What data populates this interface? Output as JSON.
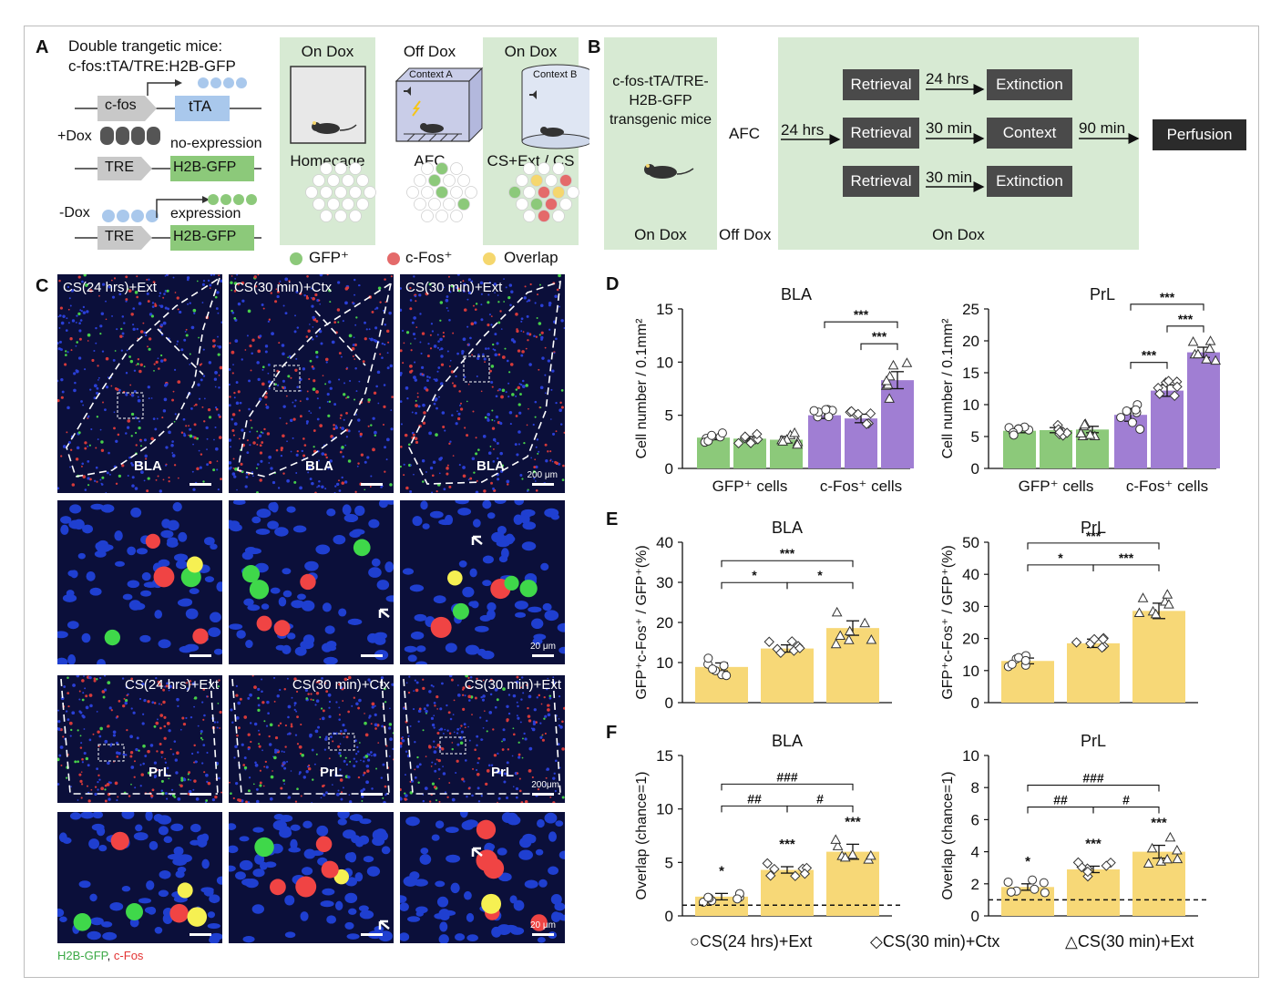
{
  "panel_labels": {
    "a": "A",
    "b": "B",
    "c": "C",
    "d": "D",
    "e": "E",
    "f": "F"
  },
  "panelA": {
    "title_line1": "Double trangetic mice:",
    "title_line2": "c-fos:tTA/TRE:H2B-GFP",
    "cfos_label": "c-fos",
    "tta_label": "tTA",
    "plus_dox": "+Dox",
    "no_expression": "no-expression",
    "tre1": "TRE",
    "h2b1": "H2B-GFP",
    "minus_dox": "-Dox",
    "expression": "expression",
    "tre2": "TRE",
    "h2b2": "H2B-GFP",
    "stages": [
      {
        "top": "On Dox",
        "bottom": "Homecage"
      },
      {
        "top": "Off Dox",
        "bottom": "AFC",
        "context": "Context A"
      },
      {
        "top": "On Dox",
        "bottom": "CS+Ext / CS",
        "context": "Context B"
      }
    ],
    "legend": [
      "GFP⁺",
      "c-Fos⁺",
      "Overlap"
    ],
    "colors": {
      "gfp": "#8cc97a",
      "cfos": "#e46a6a",
      "overlap": "#f5d76e",
      "tta": "#a9c8ec",
      "green_box": "#8cc97a"
    }
  },
  "panelB": {
    "mice": "c-fos-tTA/TRE-\nH2B-GFP\ntransgenic mice",
    "afc": "AFC",
    "on_dox": "On Dox",
    "off_dox": "Off Dox",
    "on_dox2": "On Dox",
    "t1": "24 hrs",
    "retrieval": [
      "Retrieval",
      "Retrieval",
      "Retrieval"
    ],
    "times": [
      "24 hrs",
      "30 min",
      "30 min"
    ],
    "ends": [
      "Extinction",
      "Context",
      "Extinction"
    ],
    "t90": "90 min",
    "perfusion": "Perfusion"
  },
  "panelC": {
    "top_caps": [
      "CS(24 hrs)+Ext",
      "CS(30 min)+Ctx",
      "CS(30 min)+Ext"
    ],
    "bla": "BLA",
    "prl": "PrL",
    "scale_200": "200 μm",
    "scale_20": "20 μm",
    "scale_200b": "200μm",
    "legend_gfp": "H2B-GFP",
    "legend_sep": ",",
    "legend_cfos": "c-Fos"
  },
  "legend_bottom": [
    "○CS(24 hrs)+Ext",
    "◇CS(30 min)+Ctx",
    "△CS(30 min)+Ext"
  ],
  "chart_data": [
    {
      "type": "bar",
      "panel": "D",
      "title": "BLA",
      "ylabel": "Cell number / 0.1mm²",
      "ylim": [
        0,
        15
      ],
      "yticks": [
        0,
        5,
        10,
        15
      ],
      "groups": [
        "GFP⁺ cells",
        "c-Fos⁺ cells"
      ],
      "series": [
        {
          "group": "GFP⁺ cells",
          "values": [
            2.9,
            2.8,
            2.7
          ],
          "sem": [
            0.2,
            0.2,
            0.3
          ]
        },
        {
          "group": "c-Fos⁺ cells",
          "values": [
            5.0,
            4.7,
            8.3
          ],
          "sem": [
            0.3,
            0.4,
            0.8
          ]
        }
      ],
      "sig": [
        {
          "from": 3,
          "to": 5,
          "label": "***",
          "level": 2
        },
        {
          "from": 4,
          "to": 5,
          "label": "***",
          "level": 1
        }
      ]
    },
    {
      "type": "bar",
      "panel": "D",
      "title": "PrL",
      "ylabel": "Cell number / 0.1mm²",
      "ylim": [
        0,
        25
      ],
      "yticks": [
        0,
        5,
        10,
        15,
        20,
        25
      ],
      "groups": [
        "GFP⁺ cells",
        "c-Fos⁺ cells"
      ],
      "series": [
        {
          "group": "GFP⁺ cells",
          "values": [
            5.9,
            6.0,
            6.1
          ],
          "sem": [
            0.3,
            0.4,
            0.5
          ]
        },
        {
          "group": "c-Fos⁺ cells",
          "values": [
            8.4,
            12.2,
            18.2
          ],
          "sem": [
            1.0,
            0.9,
            0.8
          ]
        }
      ],
      "sig": [
        {
          "from": 3,
          "to": 5,
          "label": "***",
          "level": 2
        },
        {
          "from": 3,
          "to": 4,
          "label": "***",
          "level": 1
        },
        {
          "from": 4,
          "to": 5,
          "label": "***",
          "level": 1
        }
      ]
    },
    {
      "type": "bar",
      "panel": "E",
      "title": "BLA",
      "ylabel": "GFP⁺c-Fos⁺ / GFP⁺(%)",
      "ylim": [
        0,
        40
      ],
      "yticks": [
        0,
        10,
        20,
        30,
        40
      ],
      "categories": [
        "CS(24 hrs)+Ext",
        "CS(30 min)+Ctx",
        "CS(30 min)+Ext"
      ],
      "values": [
        8.9,
        13.5,
        18.6
      ],
      "sem": [
        1.0,
        0.9,
        1.8
      ],
      "sig": [
        {
          "from": 0,
          "to": 2,
          "label": "***",
          "level": 2
        },
        {
          "from": 0,
          "to": 1,
          "label": "*",
          "level": 1
        },
        {
          "from": 1,
          "to": 2,
          "label": "*",
          "level": 1
        }
      ]
    },
    {
      "type": "bar",
      "panel": "E",
      "title": "PrL",
      "ylabel": "GFP⁺c-Fos⁺ / GFP⁺(%)",
      "ylim": [
        0,
        50
      ],
      "yticks": [
        0,
        10,
        20,
        30,
        40,
        50
      ],
      "categories": [
        "CS(24 hrs)+Ext",
        "CS(30 min)+Ctx",
        "CS(30 min)+Ext"
      ],
      "values": [
        13.0,
        18.5,
        28.6
      ],
      "sem": [
        0.9,
        1.3,
        2.4
      ],
      "sig": [
        {
          "from": 0,
          "to": 2,
          "label": "***",
          "level": 2
        },
        {
          "from": 0,
          "to": 1,
          "label": "*",
          "level": 1
        },
        {
          "from": 1,
          "to": 2,
          "label": "***",
          "level": 1
        }
      ]
    },
    {
      "type": "bar",
      "panel": "F",
      "title": "BLA",
      "ylabel": "Overlap (chance=1)",
      "ylim": [
        0,
        15
      ],
      "yticks": [
        0,
        5,
        10,
        15
      ],
      "chance": 1,
      "categories": [
        "CS(24 hrs)+Ext",
        "CS(30 min)+Ctx",
        "CS(30 min)+Ext"
      ],
      "values": [
        1.8,
        4.3,
        6.0
      ],
      "sem": [
        0.3,
        0.3,
        0.7
      ],
      "above": [
        "*",
        "***",
        "***"
      ],
      "sig": [
        {
          "from": 0,
          "to": 2,
          "label": "###",
          "level": 2
        },
        {
          "from": 0,
          "to": 1,
          "label": "##",
          "level": 1
        },
        {
          "from": 1,
          "to": 2,
          "label": "#",
          "level": 1
        }
      ]
    },
    {
      "type": "bar",
      "panel": "F",
      "title": "PrL",
      "ylabel": "Overlap (chance=1)",
      "ylim": [
        0,
        10
      ],
      "yticks": [
        0,
        2,
        4,
        6,
        8,
        10
      ],
      "chance": 1,
      "categories": [
        "CS(24 hrs)+Ext",
        "CS(30 min)+Ctx",
        "CS(30 min)+Ext"
      ],
      "values": [
        1.8,
        2.9,
        4.0
      ],
      "sem": [
        0.2,
        0.2,
        0.4
      ],
      "above": [
        "*",
        "***",
        "***"
      ],
      "sig": [
        {
          "from": 0,
          "to": 2,
          "label": "###",
          "level": 2
        },
        {
          "from": 0,
          "to": 1,
          "label": "##",
          "level": 1
        },
        {
          "from": 1,
          "to": 2,
          "label": "#",
          "level": 1
        }
      ]
    }
  ]
}
